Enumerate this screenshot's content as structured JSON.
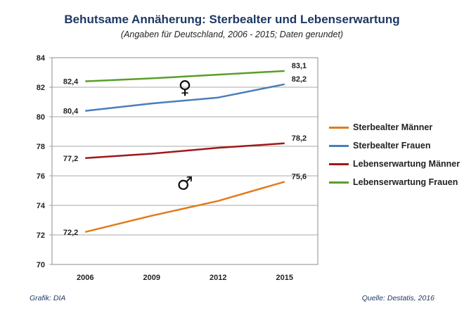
{
  "chart_data": {
    "type": "line",
    "title": "Behutsame Annäherung: Sterbealter und Lebenserwartung",
    "subtitle": "(Angaben für Deutschland, 2006 - 2015;  Daten gerundet)",
    "categories": [
      "2006",
      "2009",
      "2012",
      "2015"
    ],
    "ylim": [
      70,
      84
    ],
    "yticks": [
      "70",
      "72",
      "74",
      "76",
      "78",
      "80",
      "82",
      "84"
    ],
    "grid": true,
    "legend_position": "right",
    "series": [
      {
        "name": "Sterbealter Männer",
        "color": "#e07b1a",
        "values": [
          72.2,
          73.3,
          74.3,
          75.6
        ],
        "labels": {
          "first": "72,2",
          "last": "75,6"
        }
      },
      {
        "name": "Sterbealter Frauen",
        "color": "#4a7ebb",
        "values": [
          80.4,
          80.9,
          81.3,
          82.2
        ],
        "labels": {
          "first": "80,4",
          "last": "82,2"
        }
      },
      {
        "name": "Lebenserwartung Männer",
        "color": "#a01818",
        "values": [
          77.2,
          77.5,
          77.9,
          78.2
        ],
        "labels": {
          "first": "77,2",
          "last": "78,2"
        }
      },
      {
        "name": "Lebenserwartung Frauen",
        "color": "#5a9e2a",
        "values": [
          82.4,
          82.6,
          82.85,
          83.1
        ],
        "labels": {
          "first": "82,4",
          "last": "83,1"
        }
      }
    ],
    "annotations": [
      {
        "text": "♀",
        "x": 1.5,
        "y": 82.0
      },
      {
        "text": "♂",
        "x": 1.5,
        "y": 75.5
      }
    ],
    "footer_left": "Grafik: DIA",
    "footer_right": "Quelle: Destatis, 2016"
  }
}
